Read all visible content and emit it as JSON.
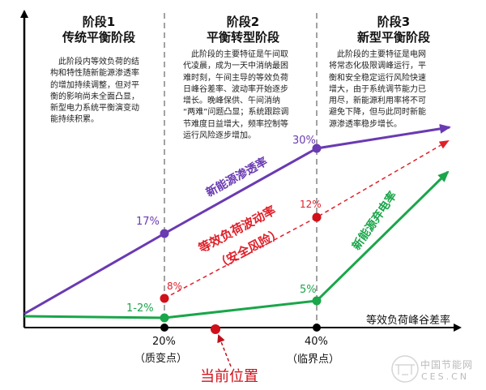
{
  "stages": [
    {
      "heading": "阶段1",
      "name": "传统平衡阶段",
      "lines": [
        "　此阶段内等效负荷的结",
        "构和特性随新能源渗透率",
        "的增加持续调整，但对平",
        "衡的影响尚未全面凸显，",
        "新型电力系统平衡演变动",
        "能持续积累。"
      ]
    },
    {
      "heading": "阶段2",
      "name": "平衡转型阶段",
      "lines": [
        "　此阶段的主要特征是午间取",
        "代凌晨，成为一天中消纳最困",
        "难时刻，午间主导的等效负荷",
        "日峰谷差率、波动率开始逐步",
        "增长。晚峰保供、午间消纳",
        "“两难”问题凸显；系统跟踪调",
        "节难度日益增大，频率控制等",
        "运行风险逐步增加。"
      ]
    },
    {
      "heading": "阶段3",
      "name": "新型平衡阶段",
      "lines": [
        "　此阶段的主要特征是电网",
        "将常态化极限调峰运行，平",
        "衡和安全稳定运行风险快速",
        "增大，由于系统调节能力已",
        "用尽，新能源利用率将不可",
        "避免下降，但与此同时新能",
        "源渗透率稳步增长。"
      ]
    }
  ],
  "x_axis": {
    "label": "等效负荷峰谷差率",
    "ticks": [
      {
        "value": "20%",
        "note": "（质变点）"
      },
      {
        "value": "40%",
        "note": "（临界点）"
      }
    ]
  },
  "current_position": "当前位置",
  "series": [
    {
      "name": "新能源渗透率",
      "color": "#6a3ab2",
      "labels": [
        "17%",
        "30%"
      ]
    },
    {
      "name": "等效负荷波动率",
      "subname": "（安全风险）",
      "color": "#e0202a",
      "labels": [
        "8%",
        "12%"
      ]
    },
    {
      "name": "新能源弃电率",
      "color": "#1aa64a",
      "labels": [
        "1-2%",
        "5%"
      ]
    }
  ],
  "watermark": {
    "cn": "中国节能网",
    "en": "CES.CN"
  }
}
